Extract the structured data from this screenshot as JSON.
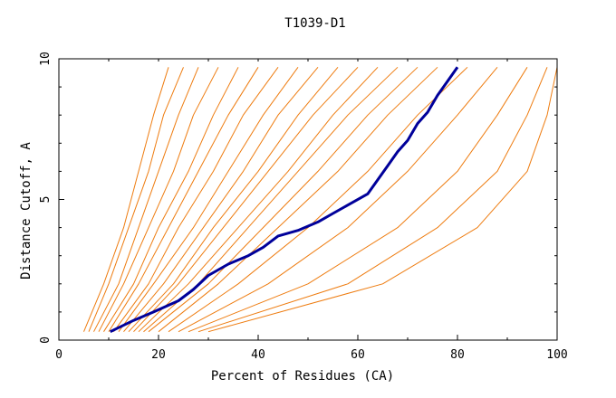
{
  "chart_data": {
    "type": "line",
    "title": "T1039-D1",
    "xlabel": "Percent of Residues (CA)",
    "ylabel": "Distance Cutoff, A",
    "xlim": [
      0,
      100
    ],
    "ylim": [
      0,
      10
    ],
    "x_ticks": [
      "0",
      "20",
      "40",
      "60",
      "80",
      "100"
    ],
    "y_ticks": [
      "0",
      "5",
      "10"
    ],
    "grid": false,
    "legend": "none",
    "colors": {
      "background_series": "#ee7c10",
      "highlight_series": "#00009a"
    },
    "series": [
      {
        "style": "highlight",
        "x": [
          10.3,
          15,
          19,
          24,
          27,
          30,
          34,
          38,
          41,
          44,
          48,
          52,
          55,
          58,
          62,
          64,
          66,
          68,
          70,
          72,
          74,
          76,
          78,
          80
        ],
        "y": [
          0.3,
          0.7,
          1.0,
          1.4,
          1.8,
          2.3,
          2.7,
          3.0,
          3.3,
          3.7,
          3.9,
          4.2,
          4.5,
          4.8,
          5.2,
          5.7,
          6.2,
          6.7,
          7.1,
          7.7,
          8.1,
          8.7,
          9.2,
          9.7
        ]
      },
      {
        "style": "bg",
        "x": [
          5,
          9,
          13,
          16,
          19,
          22
        ],
        "y": [
          0.3,
          2,
          4,
          6,
          8,
          9.7
        ]
      },
      {
        "style": "bg",
        "x": [
          6,
          10,
          14,
          18,
          21,
          25
        ],
        "y": [
          0.3,
          2,
          4,
          6,
          8,
          9.7
        ]
      },
      {
        "style": "bg",
        "x": [
          7,
          12,
          16,
          20,
          24,
          28
        ],
        "y": [
          0.3,
          2,
          4,
          6,
          8,
          9.7
        ]
      },
      {
        "style": "bg",
        "x": [
          8,
          13,
          18,
          23,
          27,
          32
        ],
        "y": [
          0.3,
          2,
          4,
          6,
          8,
          9.7
        ]
      },
      {
        "style": "bg",
        "x": [
          9,
          15,
          20,
          26,
          31,
          36
        ],
        "y": [
          0.3,
          2,
          4,
          6,
          8,
          9.7
        ]
      },
      {
        "style": "bg",
        "x": [
          10,
          16,
          22,
          28,
          34,
          40
        ],
        "y": [
          0.3,
          2,
          4,
          6,
          8,
          9.7
        ]
      },
      {
        "style": "bg",
        "x": [
          11,
          18,
          24,
          31,
          37,
          44
        ],
        "y": [
          0.3,
          2,
          4,
          6,
          8,
          9.7
        ]
      },
      {
        "style": "bg",
        "x": [
          12,
          19,
          27,
          34,
          41,
          48
        ],
        "y": [
          0.3,
          2,
          4,
          6,
          8,
          9.7
        ]
      },
      {
        "style": "bg",
        "x": [
          13,
          21,
          29,
          37,
          44,
          52
        ],
        "y": [
          0.3,
          2,
          4,
          6,
          8,
          9.7
        ]
      },
      {
        "style": "bg",
        "x": [
          14,
          23,
          31,
          40,
          48,
          56
        ],
        "y": [
          0.3,
          2,
          4,
          6,
          8,
          9.7
        ]
      },
      {
        "style": "bg",
        "x": [
          15,
          24,
          33,
          42,
          51,
          60
        ],
        "y": [
          0.3,
          2,
          4,
          6,
          8,
          9.7
        ]
      },
      {
        "style": "bg",
        "x": [
          16,
          26,
          36,
          46,
          55,
          64
        ],
        "y": [
          0.3,
          2,
          4,
          6,
          8,
          9.7
        ]
      },
      {
        "style": "bg",
        "x": [
          17,
          28,
          38,
          48,
          58,
          68
        ],
        "y": [
          0.3,
          2,
          4,
          6,
          8,
          9.7
        ]
      },
      {
        "style": "bg",
        "x": [
          18,
          30,
          41,
          52,
          62,
          72
        ],
        "y": [
          0.3,
          2,
          4,
          6,
          8,
          9.7
        ]
      },
      {
        "style": "bg",
        "x": [
          20,
          32,
          44,
          56,
          66,
          76
        ],
        "y": [
          0.3,
          2,
          4,
          6,
          8,
          9.7
        ]
      },
      {
        "style": "bg",
        "x": [
          22,
          36,
          50,
          62,
          72,
          82
        ],
        "y": [
          0.3,
          2,
          4,
          6,
          8,
          9.7
        ]
      },
      {
        "style": "bg",
        "x": [
          24,
          42,
          58,
          70,
          80,
          88
        ],
        "y": [
          0.3,
          2,
          4,
          6,
          8,
          9.7
        ]
      },
      {
        "style": "bg",
        "x": [
          26,
          50,
          68,
          80,
          88,
          94
        ],
        "y": [
          0.3,
          2,
          4,
          6,
          8,
          9.7
        ]
      },
      {
        "style": "bg",
        "x": [
          28,
          58,
          76,
          88,
          94,
          98
        ],
        "y": [
          0.3,
          2,
          4,
          6,
          8,
          9.7
        ]
      },
      {
        "style": "bg",
        "x": [
          30,
          65,
          84,
          94,
          98,
          100
        ],
        "y": [
          0.3,
          2,
          4,
          6,
          8,
          9.7
        ]
      }
    ]
  }
}
